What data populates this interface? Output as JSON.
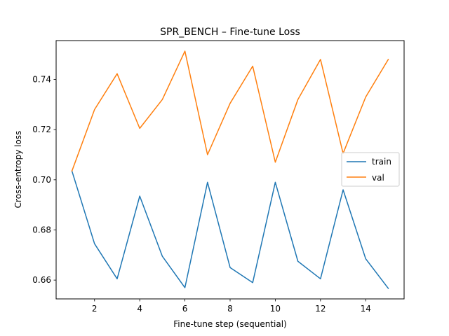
{
  "chart_data": {
    "type": "line",
    "title": "SPR_BENCH – Fine-tune Loss",
    "xlabel": "Fine-tune step (sequential)",
    "ylabel": "Cross-entropy loss",
    "xlim": [
      0.3,
      15.7
    ],
    "ylim": [
      0.6525,
      0.7555
    ],
    "xticks": [
      2,
      4,
      6,
      8,
      10,
      12,
      14
    ],
    "yticks": [
      0.66,
      0.68,
      0.7,
      0.72,
      0.74
    ],
    "xtick_labels": [
      "2",
      "4",
      "6",
      "8",
      "10",
      "12",
      "14"
    ],
    "ytick_labels": [
      "0.66",
      "0.68",
      "0.70",
      "0.72",
      "0.74"
    ],
    "grid": false,
    "legend_position": "center-right",
    "x": [
      1,
      2,
      3,
      4,
      5,
      6,
      7,
      8,
      9,
      10,
      11,
      12,
      13,
      14,
      15
    ],
    "series": [
      {
        "name": "train",
        "color": "#1f77b4",
        "values": [
          0.7035,
          0.6745,
          0.6605,
          0.6935,
          0.6695,
          0.657,
          0.699,
          0.665,
          0.659,
          0.699,
          0.6675,
          0.6605,
          0.696,
          0.6685,
          0.6567
        ]
      },
      {
        "name": "val",
        "color": "#ff7f0e",
        "values": [
          0.7035,
          0.728,
          0.7423,
          0.7205,
          0.732,
          0.7513,
          0.71,
          0.7305,
          0.7453,
          0.707,
          0.732,
          0.748,
          0.7105,
          0.733,
          0.748
        ]
      }
    ]
  }
}
